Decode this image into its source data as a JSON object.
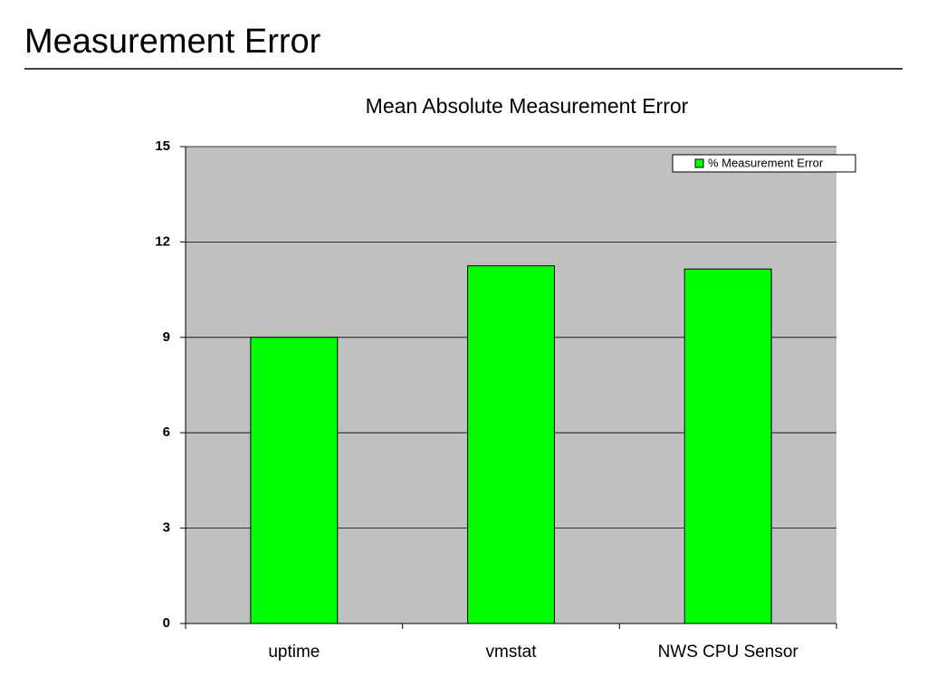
{
  "slide": {
    "title": "Measurement Error"
  },
  "chart_data": {
    "type": "bar",
    "title": "Mean Absolute Measurement Error",
    "categories": [
      "uptime",
      "vmstat",
      "NWS CPU Sensor"
    ],
    "series": [
      {
        "name": "% Measurement Error",
        "color": "#00ff00",
        "values": [
          9.0,
          11.25,
          11.15
        ]
      }
    ],
    "ylim": [
      0,
      15
    ],
    "yticks": [
      0,
      3,
      6,
      9,
      12,
      15
    ],
    "grid": true,
    "legend": "top-right",
    "background": "#c0c0c0"
  }
}
